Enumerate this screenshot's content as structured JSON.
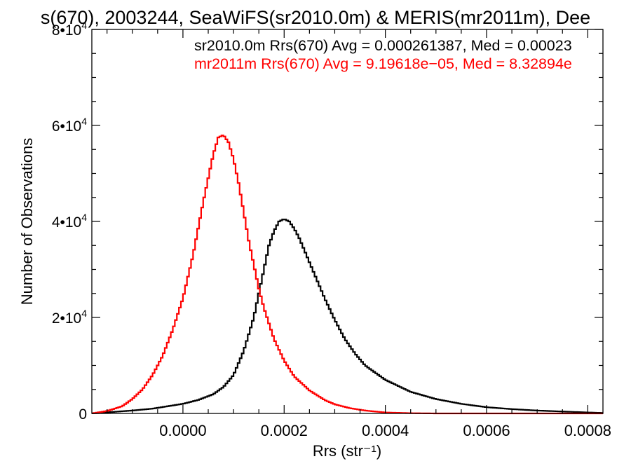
{
  "chart_data": {
    "type": "line",
    "title": "s(670), 2003244, SeaWiFS(sr2010.0m) & MERIS(mr2011m), Dee",
    "xlabel": "Rrs (str⁻¹)",
    "ylabel": "Number of Observations",
    "xlim": [
      -0.00018,
      0.00083
    ],
    "ylim": [
      0,
      80000
    ],
    "x_ticks": [
      {
        "value": 0.0,
        "label": "0.0000"
      },
      {
        "value": 0.0002,
        "label": "0.0002"
      },
      {
        "value": 0.0004,
        "label": "0.0004"
      },
      {
        "value": 0.0006,
        "label": "0.0006"
      },
      {
        "value": 0.0008,
        "label": "0.0008"
      }
    ],
    "y_ticks": [
      {
        "value": 0,
        "base": "0",
        "exp": ""
      },
      {
        "value": 20000,
        "base": "2•10",
        "exp": "4"
      },
      {
        "value": 40000,
        "base": "4•10",
        "exp": "4"
      },
      {
        "value": 60000,
        "base": "6•10",
        "exp": "4"
      },
      {
        "value": 80000,
        "base": "8•10",
        "exp": "4"
      }
    ],
    "legend": {
      "position": "top-right",
      "entries": [
        {
          "text": "sr2010.0m Rrs(670) Avg = 0.000261387, Med = 0.00023",
          "color": "#000000"
        },
        {
          "text": "mr2011m Rrs(670) Avg = 9.19618e−05, Med = 8.32894e",
          "color": "#ff0000"
        }
      ]
    },
    "grid": false,
    "series": [
      {
        "name": "sr2010.0m",
        "color": "#000000",
        "x": [
          -0.00018,
          -0.00014,
          -0.0001,
          -6e-05,
          -3e-05,
          0.0,
          3e-05,
          6e-05,
          8e-05,
          0.0001,
          0.00012,
          0.00014,
          0.00015,
          0.00016,
          0.00017,
          0.00018,
          0.00019,
          0.0002,
          0.00021,
          0.00022,
          0.00023,
          0.00024,
          0.00025,
          0.00026,
          0.00028,
          0.0003,
          0.00032,
          0.00034,
          0.00036,
          0.0004,
          0.00045,
          0.0005,
          0.00055,
          0.0006,
          0.00065,
          0.0007,
          0.00075,
          0.0008,
          0.00083
        ],
        "y": [
          0,
          300,
          600,
          1000,
          1500,
          2000,
          2800,
          4000,
          5500,
          8000,
          13000,
          20000,
          25000,
          30000,
          35000,
          38000,
          40000,
          40500,
          40000,
          38500,
          36500,
          34000,
          31500,
          29000,
          24000,
          19500,
          15500,
          12500,
          10000,
          7000,
          4500,
          3000,
          2000,
          1300,
          900,
          600,
          400,
          200,
          100
        ]
      },
      {
        "name": "mr2011m",
        "color": "#ff0000",
        "x": [
          -0.00018,
          -0.00015,
          -0.00012,
          -0.0001,
          -8e-05,
          -6e-05,
          -4e-05,
          -2e-05,
          0.0,
          2e-05,
          4e-05,
          6e-05,
          7e-05,
          8e-05,
          9e-05,
          0.0001,
          0.00011,
          0.00012,
          0.00013,
          0.00014,
          0.00015,
          0.00016,
          0.00018,
          0.0002,
          0.00022,
          0.00025,
          0.00028,
          0.0003,
          0.00033,
          0.00036,
          0.0004,
          0.00045,
          0.0005,
          0.00055,
          0.0006,
          0.0007,
          0.0008,
          0.00083
        ],
        "y": [
          0,
          500,
          1500,
          3000,
          5000,
          8000,
          12000,
          17500,
          24000,
          33000,
          44000,
          54000,
          57500,
          58000,
          56500,
          53000,
          48000,
          42000,
          36000,
          31000,
          26000,
          22000,
          15500,
          11000,
          7700,
          4800,
          2800,
          1900,
          1100,
          600,
          200,
          50,
          0,
          0,
          0,
          0,
          0,
          0
        ]
      }
    ]
  }
}
